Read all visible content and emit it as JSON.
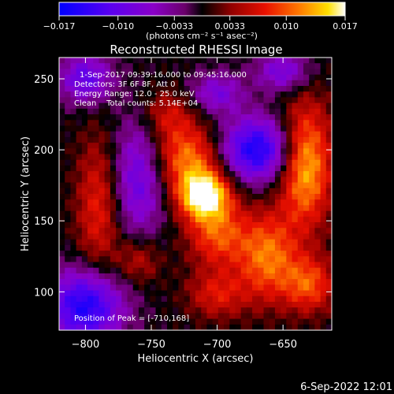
{
  "chart_data": {
    "type": "heatmap",
    "title": "Reconstructed RHESSI Image",
    "xlabel": "Heliocentric X (arcsec)",
    "ylabel": "Heliocentric Y (arcsec)",
    "xlim": [
      -820,
      -613
    ],
    "ylim": [
      73,
      265
    ],
    "x_ticks": [
      -800,
      -750,
      -700,
      -650
    ],
    "x_tick_labels": [
      "−800",
      "−750",
      "−700",
      "−650"
    ],
    "y_ticks": [
      100,
      150,
      200,
      250
    ],
    "y_tick_labels": [
      "100",
      "150",
      "200",
      "250"
    ],
    "colorbar": {
      "range": [
        -0.017,
        0.017
      ],
      "ticks": [
        -0.017,
        -0.01,
        -0.0033,
        0.0033,
        0.01,
        0.017
      ],
      "tick_labels": [
        "−0.017",
        "−0.010",
        "−0.0033",
        "0.0033",
        "0.010",
        "0.017"
      ],
      "units": "(photons cm⁻² s⁻¹ asec⁻²)"
    },
    "annotations": [
      "1-Sep-2017 09:39:16.000 to 09:45:16.000",
      "Detectors: 3F 6F 8F, Att 0",
      "Energy Range: 12.0 - 25.0 keV",
      "Clean    Total counts: 5.14E+04"
    ],
    "peak_label": "Position of Peak = [-710,168]",
    "peak": [
      -710,
      168
    ],
    "colormap": "blue-purple-black-red-orange-yellow-white"
  },
  "footer": {
    "date": "6-Sep-2022 12:01"
  }
}
